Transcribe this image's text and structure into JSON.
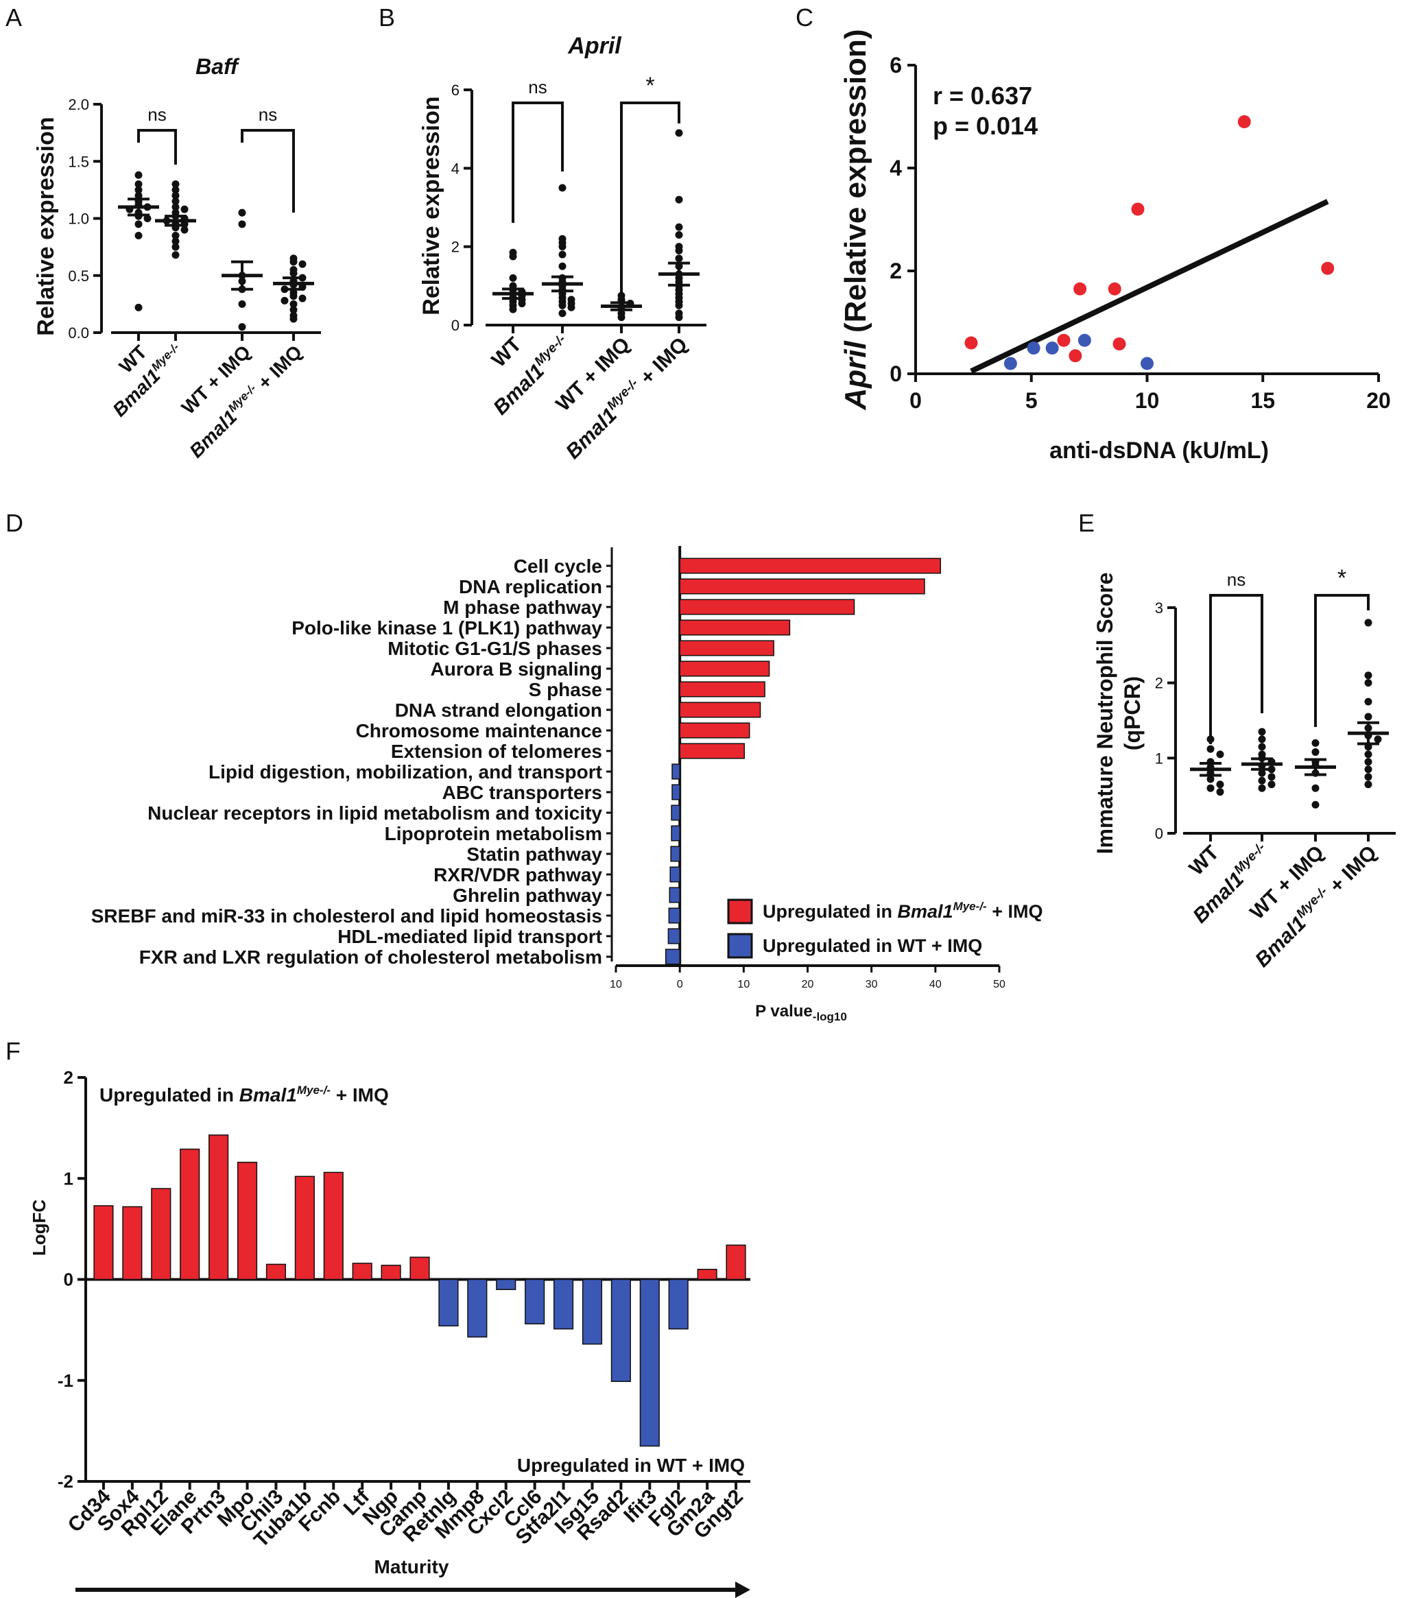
{
  "panel_letters": {
    "A": "A",
    "B": "B",
    "C": "C",
    "D": "D",
    "E": "E",
    "F": "F"
  },
  "colors": {
    "red": "#e8262e",
    "blue": "#3b58b5",
    "black": "#111111"
  },
  "chart_data": [
    {
      "id": "A",
      "type": "scatter",
      "title": "Baff",
      "ylabel": "Relative expression",
      "ylim": [
        0,
        2.0
      ],
      "yticks": [
        "0.0",
        "0.5",
        "1.0",
        "1.5",
        "2.0"
      ],
      "groups": [
        {
          "label_parts": [
            "WT"
          ],
          "mean": 1.1,
          "sem": 0.07,
          "points": [
            1.38,
            1.3,
            1.25,
            1.2,
            1.15,
            1.12,
            1.1,
            1.08,
            1.05,
            1.02,
            1.0,
            0.95,
            0.85,
            0.22
          ]
        },
        {
          "label_parts": [
            "Bmal1",
            "Mye-/-",
            ""
          ],
          "mean": 0.98,
          "sem": 0.04,
          "points": [
            1.3,
            1.25,
            1.2,
            1.15,
            1.1,
            1.08,
            1.05,
            1.02,
            1.0,
            0.98,
            0.95,
            0.95,
            0.92,
            0.9,
            0.85,
            0.8,
            0.75,
            0.68
          ]
        },
        {
          "label_parts": [
            "WT + IMQ"
          ],
          "mean": 0.5,
          "sem": 0.12,
          "points": [
            1.05,
            0.95,
            0.5,
            0.45,
            0.38,
            0.25,
            0.05
          ]
        },
        {
          "label_parts": [
            "Bmal1",
            "Mye-/-",
            " + IMQ"
          ],
          "mean": 0.43,
          "sem": 0.05,
          "points": [
            0.65,
            0.62,
            0.6,
            0.55,
            0.52,
            0.48,
            0.45,
            0.42,
            0.4,
            0.38,
            0.35,
            0.32,
            0.3,
            0.28,
            0.25,
            0.2,
            0.15,
            0.12
          ]
        }
      ],
      "sig": [
        "ns",
        "ns"
      ]
    },
    {
      "id": "B",
      "type": "scatter",
      "title": "April",
      "ylabel": "Relative expression",
      "ylim": [
        0,
        6
      ],
      "yticks": [
        "0",
        "2",
        "4",
        "6"
      ],
      "groups": [
        {
          "label_parts": [
            "WT"
          ],
          "mean": 0.8,
          "sem": 0.12,
          "points": [
            1.85,
            1.75,
            1.2,
            1.0,
            0.9,
            0.85,
            0.8,
            0.75,
            0.7,
            0.65,
            0.6,
            0.55,
            0.5,
            0.4
          ]
        },
        {
          "label_parts": [
            "Bmal1",
            "Mye-/-",
            ""
          ],
          "mean": 1.05,
          "sem": 0.18,
          "points": [
            3.5,
            2.2,
            2.1,
            2.0,
            1.8,
            1.5,
            1.2,
            1.1,
            1.0,
            0.9,
            0.8,
            0.7,
            0.65,
            0.6,
            0.55,
            0.5,
            0.45,
            0.3
          ]
        },
        {
          "label_parts": [
            "WT + IMQ"
          ],
          "mean": 0.48,
          "sem": 0.09,
          "points": [
            0.75,
            0.65,
            0.6,
            0.55,
            0.45,
            0.3,
            0.2
          ]
        },
        {
          "label_parts": [
            "Bmal1",
            "Mye-/-",
            " + IMQ"
          ],
          "mean": 1.3,
          "sem": 0.28,
          "points": [
            4.9,
            3.2,
            2.5,
            2.3,
            2.0,
            1.9,
            1.7,
            1.5,
            1.3,
            1.2,
            1.1,
            1.0,
            0.9,
            0.8,
            0.7,
            0.6,
            0.5,
            0.3,
            0.2
          ]
        }
      ],
      "sig": [
        "ns",
        "*"
      ]
    },
    {
      "id": "C",
      "type": "scatter",
      "ylabel_italic": "April",
      "ylabel_rest": " (Relative expression)",
      "xlabel": "anti-dsDNA (kU/mL)",
      "xlim": [
        0,
        20
      ],
      "ylim": [
        0,
        6
      ],
      "xticks": [
        "0",
        "5",
        "10",
        "15",
        "20"
      ],
      "yticks": [
        "0",
        "2",
        "4",
        "6"
      ],
      "stats": [
        "r = 0.637",
        "p = 0.014"
      ],
      "red_points": [
        [
          2.4,
          0.6
        ],
        [
          6.4,
          0.65
        ],
        [
          6.9,
          0.35
        ],
        [
          7.1,
          1.65
        ],
        [
          8.6,
          1.65
        ],
        [
          8.8,
          0.58
        ],
        [
          9.6,
          3.2
        ],
        [
          14.2,
          4.9
        ],
        [
          17.8,
          2.05
        ]
      ],
      "blue_points": [
        [
          4.1,
          0.2
        ],
        [
          5.1,
          0.5
        ],
        [
          5.9,
          0.5
        ],
        [
          7.3,
          0.65
        ],
        [
          10.0,
          0.2
        ]
      ],
      "fit_line": [
        [
          2.4,
          0.05
        ],
        [
          17.8,
          3.35
        ]
      ]
    },
    {
      "id": "D",
      "type": "bar",
      "xlabel_main": "P value",
      "xlabel_sub": "-log10",
      "xlim": [
        -10,
        50
      ],
      "xticks": [
        "10",
        "0",
        "10",
        "20",
        "30",
        "40",
        "50"
      ],
      "categories": [
        "Cell cycle",
        "DNA replication",
        "M phase pathway",
        "Polo-like kinase 1 (PLK1) pathway",
        "Mitotic G1-G1/S phases",
        "Aurora B signaling",
        "S phase",
        "DNA strand elongation",
        "Chromosome maintenance",
        "Extension of telomeres",
        "Lipid digestion, mobilization, and transport",
        "ABC transporters",
        "Nuclear receptors in lipid metabolism and toxicity",
        "Lipoprotein metabolism",
        "Statin pathway",
        "RXR/VDR pathway",
        "Ghrelin pathway",
        "SREBF and miR-33 in cholesterol and lipid homeostasis",
        "HDL-mediated lipid transport",
        "FXR and LXR regulation of cholesterol metabolism"
      ],
      "values": [
        40.8,
        38.3,
        27.3,
        17.2,
        14.7,
        14.0,
        13.3,
        12.6,
        10.9,
        10.1,
        -1.2,
        -1.2,
        -1.3,
        -1.3,
        -1.4,
        -1.5,
        -1.6,
        -1.7,
        -1.8,
        -2.2
      ],
      "legend": [
        {
          "text_parts": [
            "Upregulated in ",
            "Bmal1",
            "Mye-/-",
            " + IMQ"
          ],
          "color": "red"
        },
        {
          "text_parts": [
            "Upregulated in WT + IMQ"
          ],
          "color": "blue"
        }
      ]
    },
    {
      "id": "E",
      "type": "scatter",
      "ylabel": [
        "Immature Neutrophil Score",
        "(qPCR)"
      ],
      "ylim": [
        0,
        3
      ],
      "yticks": [
        "0",
        "1",
        "2",
        "3"
      ],
      "groups": [
        {
          "label_parts": [
            "WT"
          ],
          "mean": 0.85,
          "sem": 0.08,
          "points": [
            1.25,
            1.12,
            1.05,
            0.95,
            0.88,
            0.8,
            0.72,
            0.65,
            0.6,
            0.55
          ]
        },
        {
          "label_parts": [
            "Bmal1",
            "Mye-/-",
            ""
          ],
          "mean": 0.92,
          "sem": 0.07,
          "points": [
            1.35,
            1.25,
            1.15,
            1.05,
            1.0,
            0.95,
            0.9,
            0.85,
            0.8,
            0.75,
            0.7,
            0.65,
            0.6
          ]
        },
        {
          "label_parts": [
            "WT + IMQ"
          ],
          "mean": 0.88,
          "sem": 0.1,
          "points": [
            1.2,
            1.08,
            0.95,
            0.9,
            0.8,
            0.6,
            0.38
          ]
        },
        {
          "label_parts": [
            "Bmal1",
            "Mye-/-",
            " + IMQ"
          ],
          "mean": 1.33,
          "sem": 0.14,
          "points": [
            2.8,
            2.1,
            2.0,
            1.75,
            1.55,
            1.4,
            1.3,
            1.25,
            1.15,
            1.05,
            0.95,
            0.85,
            0.75,
            0.65
          ]
        }
      ],
      "sig": [
        "ns",
        "*"
      ]
    },
    {
      "id": "F",
      "type": "bar",
      "ylabel": "LogFC",
      "ylim": [
        -2,
        2
      ],
      "yticks": [
        "2",
        "1",
        "0",
        "-1",
        "-2"
      ],
      "categories": [
        "Cd34",
        "Sox4",
        "Rpl12",
        "Elane",
        "Prtn3",
        "Mpo",
        "Chil3",
        "Tuba1b",
        "Fcnb",
        "Ltf",
        "Ngp",
        "Camp",
        "Retnlg",
        "Mmp8",
        "Cxcl2",
        "Ccl6",
        "Stfa2l1",
        "Isg15",
        "Rsad2",
        "Ifit3",
        "Fgl2",
        "Gm2a",
        "Gngt2"
      ],
      "values": [
        0.73,
        0.72,
        0.9,
        1.29,
        1.43,
        1.16,
        0.15,
        1.02,
        1.06,
        0.16,
        0.14,
        0.22,
        -0.46,
        -0.57,
        -0.1,
        -0.44,
        -0.49,
        -0.64,
        -1.01,
        -1.65,
        -0.49,
        0.1,
        0.34
      ],
      "top_note_parts": [
        "Upregulated in ",
        "Bmal1",
        "Mye-/-",
        " + IMQ"
      ],
      "bottom_note": "Upregulated in WT + IMQ",
      "xlabel": "Maturity"
    }
  ]
}
